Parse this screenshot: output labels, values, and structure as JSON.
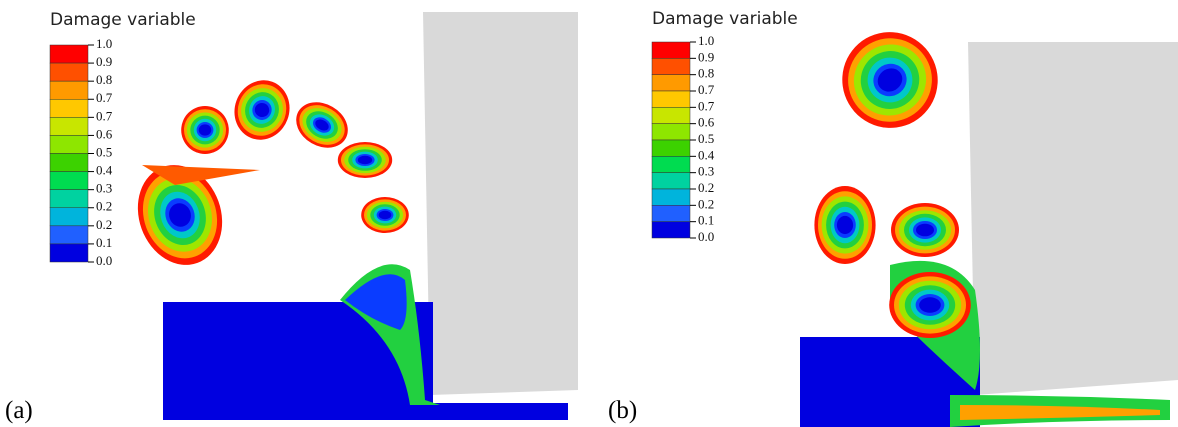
{
  "legend_colors": [
    "#ff0000",
    "#ff5000",
    "#ff9a00",
    "#ffc800",
    "#c8e600",
    "#8ee600",
    "#3cd200",
    "#00dc50",
    "#00d2a0",
    "#00b4dc",
    "#2060ff",
    "#0000e0"
  ],
  "panels": [
    {
      "label": "(a)",
      "legend": {
        "title": "Damage variable",
        "labels": [
          "1.0",
          "0.9",
          "0.8",
          "0.7",
          "0.7",
          "0.6",
          "0.5",
          "0.4",
          "0.3",
          "0.2",
          "0.2",
          "0.1",
          "0.0"
        ]
      }
    },
    {
      "label": "(b)",
      "legend": {
        "title": "Damage variable",
        "labels": [
          "1.0",
          "0.9",
          "0.8",
          "0.7",
          "0.7",
          "0.6",
          "0.5",
          "0.4",
          "0.3",
          "0.2",
          "0.2",
          "0.1",
          "0.0"
        ]
      }
    }
  ]
}
